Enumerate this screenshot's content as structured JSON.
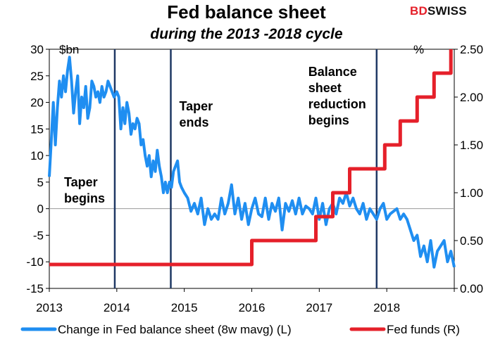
{
  "header": {
    "title": "Fed balance sheet",
    "subtitle": "during the 2013 -2018 cycle",
    "logo_text_red": "BD",
    "logo_text_dark": "SWISS"
  },
  "colors": {
    "balance_series": "#1f8ef1",
    "fed_funds_series": "#e5202a",
    "event_lines": "#1f3864",
    "zero_line": "#999999"
  },
  "chart_data": {
    "type": "line",
    "title": "Fed balance sheet",
    "subtitle": "during the 2013 -2018 cycle",
    "left_axis": {
      "unit_label": "$bn",
      "range": [
        -15,
        30
      ],
      "ticks": [
        -15,
        -10,
        -5,
        0,
        5,
        10,
        15,
        20,
        25,
        30
      ]
    },
    "right_axis": {
      "unit_label": "%",
      "range": [
        0,
        2.5
      ],
      "ticks": [
        "0.00",
        "0.50",
        "1.00",
        "1.50",
        "2.00",
        "2.50"
      ]
    },
    "x_axis": {
      "range": [
        2013,
        2019
      ],
      "ticks": [
        "2013",
        "2014",
        "2015",
        "2016",
        "2017",
        "2018"
      ]
    },
    "grid": false,
    "legend_position": "bottom",
    "series": [
      {
        "name": "Change in Fed balance sheet (8w mavg) (L)",
        "axis": "left",
        "x": [
          2013.0,
          2013.03,
          2013.06,
          2013.09,
          2013.12,
          2013.15,
          2013.18,
          2013.21,
          2013.24,
          2013.27,
          2013.3,
          2013.33,
          2013.36,
          2013.39,
          2013.42,
          2013.45,
          2013.48,
          2013.51,
          2013.54,
          2013.57,
          2013.6,
          2013.63,
          2013.66,
          2013.69,
          2013.72,
          2013.75,
          2013.78,
          2013.81,
          2013.84,
          2013.87,
          2013.9,
          2013.93,
          2013.96,
          2014.0,
          2014.03,
          2014.06,
          2014.09,
          2014.12,
          2014.15,
          2014.18,
          2014.21,
          2014.24,
          2014.27,
          2014.3,
          2014.33,
          2014.36,
          2014.39,
          2014.42,
          2014.45,
          2014.48,
          2014.51,
          2014.54,
          2014.57,
          2014.6,
          2014.63,
          2014.66,
          2014.69,
          2014.72,
          2014.75,
          2014.78,
          2014.81,
          2014.84,
          2014.87,
          2014.9,
          2014.93,
          2014.96,
          2015.0,
          2015.05,
          2015.1,
          2015.15,
          2015.2,
          2015.25,
          2015.3,
          2015.35,
          2015.4,
          2015.45,
          2015.5,
          2015.55,
          2015.6,
          2015.65,
          2015.7,
          2015.75,
          2015.8,
          2015.85,
          2015.9,
          2015.95,
          2016.0,
          2016.05,
          2016.1,
          2016.15,
          2016.2,
          2016.25,
          2016.3,
          2016.35,
          2016.4,
          2016.45,
          2016.5,
          2016.55,
          2016.6,
          2016.65,
          2016.7,
          2016.75,
          2016.8,
          2016.85,
          2016.9,
          2016.95,
          2017.0,
          2017.05,
          2017.1,
          2017.15,
          2017.2,
          2017.25,
          2017.3,
          2017.35,
          2017.4,
          2017.45,
          2017.5,
          2017.55,
          2017.6,
          2017.65,
          2017.7,
          2017.75,
          2017.8,
          2017.85,
          2017.9,
          2017.95,
          2018.0,
          2018.05,
          2018.1,
          2018.15,
          2018.2,
          2018.25,
          2018.3,
          2018.35,
          2018.4,
          2018.45,
          2018.5,
          2018.55,
          2018.6,
          2018.65,
          2018.7,
          2018.75,
          2018.8,
          2018.85,
          2018.9,
          2018.95,
          2019.0
        ],
        "y": [
          6,
          13,
          20,
          12,
          19,
          24,
          21,
          25,
          22,
          26,
          28.5,
          24,
          18,
          22,
          25,
          16,
          21,
          19,
          23,
          17,
          19,
          24,
          23,
          21,
          22,
          20,
          23,
          21,
          22,
          24,
          23,
          22,
          21,
          22,
          21,
          15,
          19,
          16,
          20,
          18,
          14,
          16,
          15,
          17,
          16,
          12,
          13,
          10,
          8,
          10,
          6,
          9,
          7,
          11,
          8,
          6,
          3,
          5,
          3,
          5,
          4,
          7,
          8,
          9,
          5,
          4,
          3,
          2,
          -0.5,
          1,
          -1,
          2,
          -3,
          0,
          -2,
          -1,
          -2,
          2,
          -1,
          1,
          4.5,
          -1,
          2,
          -2,
          1,
          -3,
          0,
          2,
          -1,
          -1.5,
          2,
          -2,
          1,
          -0.5,
          2,
          -4,
          1,
          -0.5,
          1.5,
          -1,
          2,
          -1,
          0.5,
          0,
          -1,
          2,
          -2,
          1,
          -3,
          0,
          1,
          -1,
          2,
          1,
          3,
          0.5,
          2,
          0,
          -1,
          1,
          -2,
          0,
          -1,
          -2,
          0,
          1,
          -2,
          -1,
          -0.5,
          0,
          -2,
          -1,
          -2,
          -4,
          -6,
          -5,
          -9,
          -7,
          -10,
          -6,
          -11,
          -8,
          -7,
          -6,
          -10,
          -8,
          -11
        ]
      },
      {
        "name": "Fed funds (R)",
        "axis": "right",
        "x": [
          2013.0,
          2016.0,
          2016.0,
          2016.95,
          2016.95,
          2017.2,
          2017.2,
          2017.45,
          2017.45,
          2017.97,
          2017.97,
          2018.2,
          2018.2,
          2018.45,
          2018.45,
          2018.7,
          2018.7,
          2018.95,
          2018.95
        ],
        "y": [
          0.25,
          0.25,
          0.5,
          0.5,
          0.75,
          0.75,
          1.0,
          1.0,
          1.25,
          1.25,
          1.5,
          1.5,
          1.75,
          1.75,
          2.0,
          2.0,
          2.25,
          2.25,
          2.5
        ]
      }
    ],
    "event_lines": [
      {
        "x": 2013.97,
        "label_lines": [
          "Taper",
          "begins"
        ]
      },
      {
        "x": 2014.8,
        "label_lines": [
          "Taper",
          "ends"
        ]
      },
      {
        "x": 2017.85,
        "label_lines": [
          "Balance",
          "sheet",
          "reduction",
          "begins"
        ]
      }
    ]
  }
}
